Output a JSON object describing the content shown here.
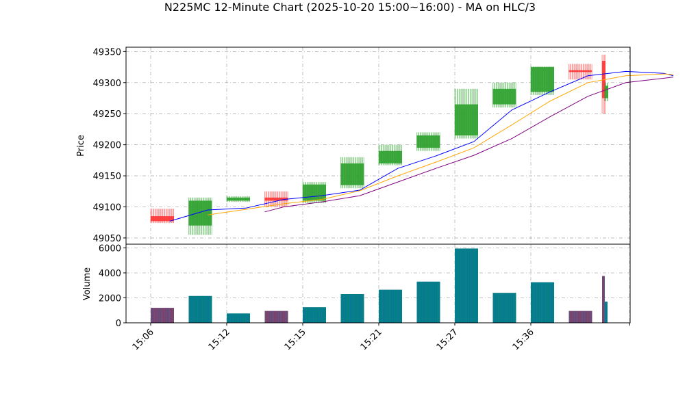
{
  "title": "N225MC 12-Minute Chart (2025-10-20 15:00~16:00) - MA on HLC/3",
  "chart_data": [
    {
      "type": "candlestick",
      "ylabel": "Price",
      "ylim": [
        49040,
        49357
      ],
      "yticks": [
        49050,
        49100,
        49150,
        49200,
        49250,
        49300,
        49350
      ],
      "ytick_labels": [
        "49050",
        "49100",
        "49150",
        "49200",
        "49250",
        "49300",
        "49350"
      ],
      "grid": true,
      "colors": {
        "up": "#2ca02c",
        "down": "#ff3333",
        "ma_short": "#0000ff",
        "ma_mid": "#ffa500",
        "ma_long": "#800080"
      },
      "candles": [
        {
          "i": 0,
          "open": 49085,
          "high": 49097,
          "low": 49074,
          "close": 49077
        },
        {
          "i": 1,
          "open": 49070,
          "high": 49115,
          "low": 49055,
          "close": 49110
        },
        {
          "i": 2,
          "open": 49110,
          "high": 49117,
          "low": 49108,
          "close": 49115
        },
        {
          "i": 3,
          "open": 49115,
          "high": 49125,
          "low": 49100,
          "close": 49110
        },
        {
          "i": 4,
          "open": 49110,
          "high": 49140,
          "low": 49106,
          "close": 49136
        },
        {
          "i": 5,
          "open": 49135,
          "high": 49180,
          "low": 49130,
          "close": 49170
        },
        {
          "i": 6,
          "open": 49170,
          "high": 49200,
          "low": 49167,
          "close": 49190
        },
        {
          "i": 7,
          "open": 49195,
          "high": 49220,
          "low": 49190,
          "close": 49215
        },
        {
          "i": 8,
          "open": 49215,
          "high": 49290,
          "low": 49210,
          "close": 49265
        },
        {
          "i": 9,
          "open": 49265,
          "high": 49300,
          "low": 49260,
          "close": 49290
        },
        {
          "i": 10,
          "open": 49285,
          "high": 49326,
          "low": 49280,
          "close": 49325
        },
        {
          "i": 11,
          "open": 49320,
          "high": 49330,
          "low": 49305,
          "close": 49317
        },
        {
          "i": 12,
          "open": 49335,
          "high": 49345,
          "low": 49250,
          "close": 49275
        },
        {
          "i": 13,
          "open": 49275,
          "high": 49300,
          "low": 49270,
          "close": 49295
        }
      ],
      "ma": [
        {
          "name": "",
          "color": "#0000ff",
          "points": [
            [
              0.5,
              49077
            ],
            [
              1.5,
              49095
            ],
            [
              2.5,
              49098
            ],
            [
              3.5,
              49112
            ],
            [
              4.5,
              49118
            ],
            [
              5.5,
              49127
            ],
            [
              6.5,
              49162
            ],
            [
              7.5,
              49182
            ],
            [
              8.5,
              49205
            ],
            [
              9.5,
              49256
            ],
            [
              10.5,
              49285
            ],
            [
              11.5,
              49311
            ],
            [
              12.5,
              49318
            ],
            [
              13.5,
              49315
            ],
            [
              13.75,
              49311
            ]
          ]
        },
        {
          "name": "",
          "color": "#ffa500",
          "points": [
            [
              1.5,
              49087
            ],
            [
              2.5,
              49096
            ],
            [
              3.5,
              49105
            ],
            [
              4.5,
              49112
            ],
            [
              5.5,
              49126
            ],
            [
              6.5,
              49150
            ],
            [
              7.5,
              49172
            ],
            [
              8.5,
              49195
            ],
            [
              9.5,
              49232
            ],
            [
              10.5,
              49270
            ],
            [
              11.5,
              49300
            ],
            [
              12.5,
              49311
            ],
            [
              13.5,
              49314
            ],
            [
              13.75,
              49313
            ]
          ]
        },
        {
          "name": "",
          "color": "#800080",
          "points": [
            [
              3.0,
              49092
            ],
            [
              3.5,
              49100
            ],
            [
              4.5,
              49108
            ],
            [
              5.5,
              49118
            ],
            [
              6.5,
              49140
            ],
            [
              7.5,
              49162
            ],
            [
              8.5,
              49183
            ],
            [
              9.5,
              49210
            ],
            [
              10.5,
              49245
            ],
            [
              11.5,
              49278
            ],
            [
              12.5,
              49300
            ],
            [
              13.5,
              49307
            ],
            [
              13.75,
              49309
            ]
          ]
        }
      ]
    },
    {
      "type": "bar",
      "ylabel": "Volume",
      "ylim": [
        0,
        6300
      ],
      "yticks": [
        0,
        2000,
        4000,
        6000
      ],
      "ytick_labels": [
        "0",
        "2000",
        "4000",
        "6000"
      ],
      "grid": true,
      "xtick_labels": [
        "15:06",
        "15:12",
        "15:15",
        "15:21",
        "15:27",
        "15:36",
        ""
      ],
      "xtick_positions": [
        0,
        2,
        4,
        6,
        8,
        10,
        12.6
      ],
      "colors": {
        "up": "#008080",
        "down": "#8b3a62",
        "accent": "#1f77b4"
      },
      "bars": [
        {
          "i": 0,
          "volume": 1200,
          "dir": "down"
        },
        {
          "i": 1,
          "volume": 2150,
          "dir": "up"
        },
        {
          "i": 2,
          "volume": 750,
          "dir": "up"
        },
        {
          "i": 3,
          "volume": 950,
          "dir": "down"
        },
        {
          "i": 4,
          "volume": 1250,
          "dir": "up"
        },
        {
          "i": 5,
          "volume": 2300,
          "dir": "up"
        },
        {
          "i": 6,
          "volume": 2650,
          "dir": "up"
        },
        {
          "i": 7,
          "volume": 3300,
          "dir": "up"
        },
        {
          "i": 8,
          "volume": 5950,
          "dir": "up"
        },
        {
          "i": 9,
          "volume": 2400,
          "dir": "up"
        },
        {
          "i": 10,
          "volume": 3250,
          "dir": "up"
        },
        {
          "i": 11,
          "volume": 950,
          "dir": "down"
        },
        {
          "i": 12,
          "volume": 3750,
          "dir": "down"
        },
        {
          "i": 13,
          "volume": 1700,
          "dir": "up"
        }
      ]
    }
  ]
}
